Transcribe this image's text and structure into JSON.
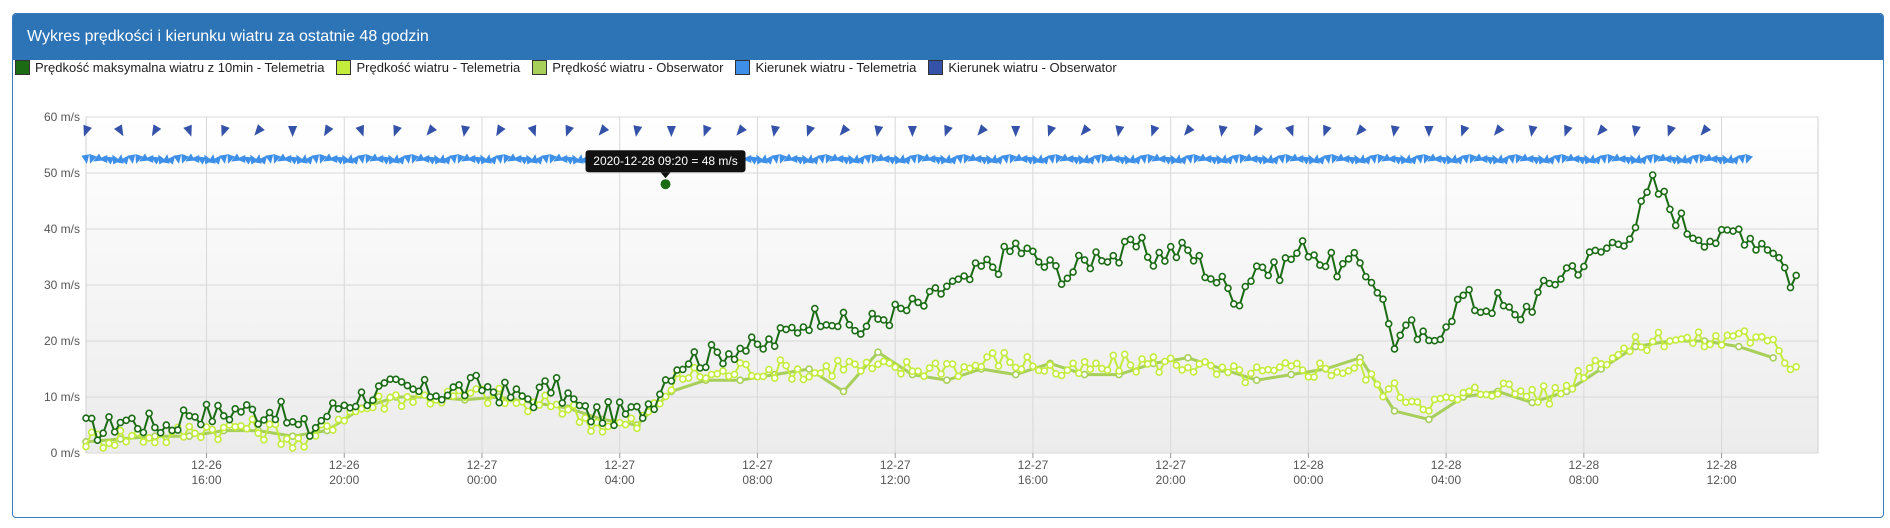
{
  "panel": {
    "title": "Wykres prędkości i kierunku wiatru za ostatnie 48 godzin"
  },
  "legend": [
    {
      "label": "Prędkość maksymalna wiatru z 10min - Telemetria",
      "color": "#1a6b14"
    },
    {
      "label": "Prędkość wiatru - Telemetria",
      "color": "#c4ec3c"
    },
    {
      "label": "Prędkość wiatru - Obserwator",
      "color": "#a7cf5a"
    },
    {
      "label": "Kierunek wiatru - Telemetria",
      "color": "#3d8fe8"
    },
    {
      "label": "Kierunek wiatru - Obserwator",
      "color": "#3453a8"
    }
  ],
  "tooltip": {
    "text": "2020-12-28 09:20 = 48 m/s",
    "x": 41.33,
    "y": 48
  },
  "chart_data": {
    "type": "line",
    "xlim": [
      24.5,
      74.8
    ],
    "ylim": [
      0,
      60
    ],
    "y_ticks": [
      {
        "value": 0,
        "label": "0 m/s"
      },
      {
        "value": 10,
        "label": "10 m/s"
      },
      {
        "value": 20,
        "label": "20 m/s"
      },
      {
        "value": 30,
        "label": "30 m/s"
      },
      {
        "value": 40,
        "label": "40 m/s"
      },
      {
        "value": 50,
        "label": "50 m/s"
      },
      {
        "value": 60,
        "label": "60 m/s"
      }
    ],
    "x_ticks": [
      {
        "value": 28,
        "date": "12-26",
        "time": "16:00"
      },
      {
        "value": 32,
        "date": "12-26",
        "time": "20:00"
      },
      {
        "value": 36,
        "date": "12-27",
        "time": "00:00"
      },
      {
        "value": 40,
        "date": "12-27",
        "time": "04:00"
      },
      {
        "value": 44,
        "date": "12-27",
        "time": "08:00"
      },
      {
        "value": 48,
        "date": "12-27",
        "time": "12:00"
      },
      {
        "value": 52,
        "date": "12-27",
        "time": "16:00"
      },
      {
        "value": 56,
        "date": "12-27",
        "time": "20:00"
      },
      {
        "value": 60,
        "date": "12-28",
        "time": "00:00"
      },
      {
        "value": 64,
        "date": "12-28",
        "time": "04:00"
      },
      {
        "value": 68,
        "date": "12-28",
        "time": "08:00"
      },
      {
        "value": 72,
        "date": "12-28",
        "time": "12:00"
      }
    ],
    "direction_row_value": 52.5,
    "observer_direction_row_value": 57.5,
    "series": [
      {
        "name": "Prędkość maksymalna wiatru z 10min - Telemetria",
        "color": "#1a6b14",
        "anchors": [
          [
            24.5,
            4.5
          ],
          [
            25,
            4
          ],
          [
            25.5,
            6
          ],
          [
            26,
            5.5
          ],
          [
            26.5,
            5
          ],
          [
            27,
            5
          ],
          [
            27.5,
            7.5
          ],
          [
            28,
            7
          ],
          [
            28.5,
            7
          ],
          [
            29,
            8
          ],
          [
            29.5,
            7
          ],
          [
            30,
            8
          ],
          [
            30.5,
            5
          ],
          [
            31,
            4
          ],
          [
            31.5,
            7
          ],
          [
            32,
            9
          ],
          [
            32.5,
            10
          ],
          [
            33,
            11
          ],
          [
            33.5,
            11.5
          ],
          [
            34,
            11
          ],
          [
            34.5,
            11
          ],
          [
            35,
            11
          ],
          [
            35.5,
            11.5
          ],
          [
            36,
            12
          ],
          [
            36.5,
            11
          ],
          [
            37,
            10
          ],
          [
            37.5,
            10
          ],
          [
            38,
            12
          ],
          [
            38.5,
            10
          ],
          [
            39,
            7
          ],
          [
            39.5,
            7
          ],
          [
            40,
            7
          ],
          [
            40.5,
            7
          ],
          [
            41,
            10
          ],
          [
            41.5,
            15
          ],
          [
            42,
            17
          ],
          [
            42.5,
            17
          ],
          [
            43,
            18
          ],
          [
            43.5,
            19
          ],
          [
            44,
            18.5
          ],
          [
            44.5,
            20
          ],
          [
            45,
            22
          ],
          [
            45.5,
            24
          ],
          [
            46,
            25
          ],
          [
            46.5,
            23
          ],
          [
            47,
            22
          ],
          [
            47.5,
            24
          ],
          [
            48,
            25
          ],
          [
            48.5,
            26
          ],
          [
            49,
            27
          ],
          [
            49.5,
            30
          ],
          [
            50,
            30
          ],
          [
            50.5,
            33
          ],
          [
            51,
            34
          ],
          [
            51.5,
            37
          ],
          [
            52,
            35
          ],
          [
            52.5,
            33
          ],
          [
            53,
            32
          ],
          [
            53.5,
            34
          ],
          [
            54,
            36
          ],
          [
            54.5,
            35
          ],
          [
            55,
            37
          ],
          [
            55.5,
            35
          ],
          [
            56,
            36
          ],
          [
            56.5,
            36
          ],
          [
            57,
            33
          ],
          [
            57.5,
            30
          ],
          [
            58,
            28
          ],
          [
            58.5,
            34
          ],
          [
            59,
            32
          ],
          [
            59.5,
            35
          ],
          [
            60,
            37
          ],
          [
            60.5,
            34
          ],
          [
            61,
            33
          ],
          [
            61.5,
            34
          ],
          [
            62,
            30
          ],
          [
            62.5,
            20
          ],
          [
            63,
            22
          ],
          [
            63.5,
            19
          ],
          [
            64,
            24
          ],
          [
            64.5,
            28
          ],
          [
            65,
            26
          ],
          [
            65.5,
            27
          ],
          [
            66,
            24
          ],
          [
            66.5,
            27
          ],
          [
            67,
            30
          ],
          [
            67.5,
            33
          ],
          [
            68,
            34
          ],
          [
            68.5,
            36
          ],
          [
            69,
            38
          ],
          [
            69.5,
            41
          ],
          [
            70,
            48
          ],
          [
            70.5,
            44
          ],
          [
            71,
            40
          ],
          [
            71.5,
            39
          ],
          [
            72,
            38
          ],
          [
            72.5,
            40
          ],
          [
            73,
            38
          ],
          [
            73.5,
            37
          ],
          [
            74,
            31
          ],
          [
            74.3,
            32
          ]
        ],
        "amplitude": 2.2
      },
      {
        "name": "Prędkość wiatru - Telemetria",
        "color": "#c4ec3c",
        "anchors": [
          [
            24.5,
            2.5
          ],
          [
            25,
            2.5
          ],
          [
            25.5,
            3
          ],
          [
            26,
            3
          ],
          [
            26.5,
            3
          ],
          [
            27,
            3
          ],
          [
            27.5,
            4
          ],
          [
            28,
            4.5
          ],
          [
            28.5,
            4
          ],
          [
            29,
            5
          ],
          [
            29.5,
            4
          ],
          [
            30,
            4
          ],
          [
            30.5,
            2
          ],
          [
            31,
            1.5
          ],
          [
            31.5,
            5
          ],
          [
            32,
            7
          ],
          [
            32.5,
            8
          ],
          [
            33,
            9
          ],
          [
            33.5,
            10
          ],
          [
            34,
            10
          ],
          [
            34.5,
            10
          ],
          [
            35,
            10
          ],
          [
            35.5,
            10
          ],
          [
            36,
            10.5
          ],
          [
            36.5,
            10
          ],
          [
            37,
            9
          ],
          [
            37.5,
            8
          ],
          [
            38,
            9
          ],
          [
            38.5,
            8
          ],
          [
            39,
            6
          ],
          [
            39.5,
            5
          ],
          [
            40,
            5
          ],
          [
            40.5,
            5
          ],
          [
            41,
            8
          ],
          [
            41.5,
            12
          ],
          [
            42,
            14
          ],
          [
            42.5,
            14
          ],
          [
            43,
            14
          ],
          [
            43.5,
            15
          ],
          [
            44,
            15
          ],
          [
            44.5,
            15
          ],
          [
            45,
            15
          ],
          [
            45.5,
            14
          ],
          [
            46,
            15
          ],
          [
            46.5,
            16
          ],
          [
            47,
            15
          ],
          [
            47.5,
            15
          ],
          [
            48,
            15
          ],
          [
            48.5,
            15
          ],
          [
            49,
            15
          ],
          [
            49.5,
            16
          ],
          [
            50,
            15
          ],
          [
            50.5,
            16
          ],
          [
            51,
            17
          ],
          [
            51.5,
            16
          ],
          [
            52,
            16
          ],
          [
            52.5,
            15
          ],
          [
            53,
            14
          ],
          [
            53.5,
            15
          ],
          [
            54,
            15
          ],
          [
            54.5,
            16
          ],
          [
            55,
            16
          ],
          [
            55.5,
            16
          ],
          [
            56,
            16
          ],
          [
            56.5,
            16
          ],
          [
            57,
            15
          ],
          [
            57.5,
            14
          ],
          [
            58,
            14
          ],
          [
            58.5,
            14
          ],
          [
            59,
            14
          ],
          [
            59.5,
            15
          ],
          [
            60,
            15
          ],
          [
            60.5,
            15
          ],
          [
            61,
            15
          ],
          [
            61.5,
            15
          ],
          [
            62,
            12
          ],
          [
            62.5,
            11
          ],
          [
            63,
            10
          ],
          [
            63.5,
            9
          ],
          [
            64,
            9
          ],
          [
            64.5,
            10
          ],
          [
            65,
            11
          ],
          [
            65.5,
            12
          ],
          [
            66,
            11
          ],
          [
            66.5,
            11
          ],
          [
            67,
            10
          ],
          [
            67.5,
            12
          ],
          [
            68,
            15
          ],
          [
            68.5,
            17
          ],
          [
            69,
            18
          ],
          [
            69.5,
            19
          ],
          [
            70,
            20
          ],
          [
            70.5,
            21
          ],
          [
            71,
            20
          ],
          [
            71.5,
            20
          ],
          [
            72,
            20
          ],
          [
            72.5,
            22
          ],
          [
            73,
            20
          ],
          [
            73.5,
            19
          ],
          [
            74,
            16
          ],
          [
            74.3,
            16
          ]
        ],
        "amplitude": 1.8
      },
      {
        "name": "Prędkość wiatru - Obserwator",
        "color": "#a7cf5a",
        "points": [
          [
            24.5,
            2
          ],
          [
            25.5,
            2.5
          ],
          [
            26.5,
            3
          ],
          [
            27.5,
            3
          ],
          [
            28.5,
            4
          ],
          [
            29.5,
            4
          ],
          [
            30.5,
            3
          ],
          [
            31.5,
            4
          ],
          [
            32.5,
            8
          ],
          [
            33.5,
            10
          ],
          [
            34.5,
            10
          ],
          [
            35.5,
            9.5
          ],
          [
            36.5,
            10
          ],
          [
            37.5,
            9
          ],
          [
            38.5,
            8
          ],
          [
            39.5,
            6
          ],
          [
            40.5,
            5
          ],
          [
            41.5,
            11
          ],
          [
            42.5,
            13
          ],
          [
            43.5,
            13
          ],
          [
            44.5,
            14
          ],
          [
            45.5,
            15
          ],
          [
            46.5,
            11
          ],
          [
            47.5,
            18
          ],
          [
            48.5,
            14
          ],
          [
            49.5,
            13
          ],
          [
            50.5,
            15
          ],
          [
            51.5,
            14
          ],
          [
            52.5,
            16
          ],
          [
            53.5,
            14
          ],
          [
            54.5,
            14
          ],
          [
            55.5,
            16
          ],
          [
            56.5,
            17
          ],
          [
            57.5,
            15
          ],
          [
            58.5,
            13
          ],
          [
            59.5,
            14
          ],
          [
            60.5,
            15
          ],
          [
            61.5,
            17
          ],
          [
            62.5,
            7.5
          ],
          [
            63.5,
            6
          ],
          [
            64.5,
            10
          ],
          [
            65.5,
            11
          ],
          [
            66.5,
            9
          ],
          [
            67.5,
            11
          ],
          [
            68.5,
            15
          ],
          [
            69.5,
            19
          ],
          [
            70.5,
            20
          ],
          [
            71.5,
            20
          ],
          [
            72.5,
            19
          ],
          [
            73.5,
            17
          ]
        ]
      }
    ],
    "direction_telemetry": {
      "name": "Kierunek wiatru - Telemetria",
      "color": "#3d8fe8",
      "x_range": [
        24.5,
        72.8
      ],
      "step": 0.167,
      "angles": [
        170,
        200,
        240,
        270,
        300,
        330,
        10,
        40
      ]
    },
    "direction_observer": {
      "name": "Kierunek wiatru - Obserwator",
      "color": "#3453a8",
      "x_start": 24.5,
      "x_end": 72.2,
      "step": 1,
      "angles": [
        200,
        150,
        210,
        160,
        200,
        220,
        180,
        210,
        160,
        200,
        220,
        190,
        210,
        160,
        200,
        220,
        190,
        180,
        200,
        220,
        190,
        200,
        220,
        190,
        180,
        200,
        220,
        180,
        200,
        220,
        190,
        200,
        220,
        190,
        210,
        160,
        200,
        220,
        190,
        180,
        200,
        220,
        190,
        200,
        220,
        190,
        200,
        220
      ]
    }
  }
}
